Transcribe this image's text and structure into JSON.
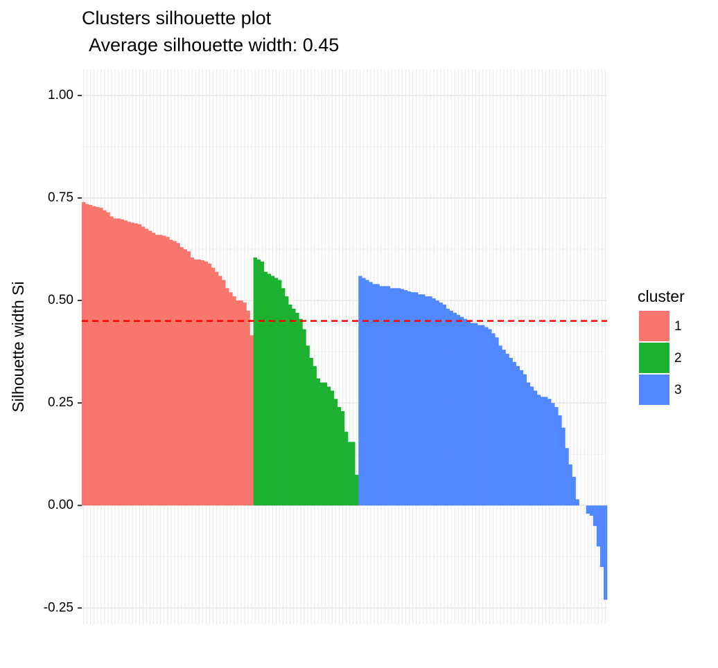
{
  "chart_data": {
    "type": "bar",
    "title": "Clusters silhouette plot",
    "subtitle": "Average silhouette width: 0.45",
    "y_label": "Silhouette width Si",
    "legend_title": "cluster",
    "legend_position": "right",
    "hline": 0.45,
    "hline_color": "#ff0000",
    "grid": true,
    "ylim": [
      -0.29,
      1.064
    ],
    "yticks": [
      {
        "value": -0.25,
        "label": "-0.25"
      },
      {
        "value": 0,
        "label": "0.00"
      },
      {
        "value": 0.25,
        "label": "0.25"
      },
      {
        "value": 0.5,
        "label": "0.50"
      },
      {
        "value": 0.75,
        "label": "0.75"
      },
      {
        "value": 1,
        "label": "1.00"
      }
    ],
    "series": [
      {
        "name": "1",
        "color": "#f8766d",
        "values": [
          0.74,
          0.735,
          0.733,
          0.73,
          0.728,
          0.726,
          0.72,
          0.715,
          0.705,
          0.7,
          0.7,
          0.698,
          0.695,
          0.692,
          0.69,
          0.688,
          0.686,
          0.68,
          0.675,
          0.67,
          0.665,
          0.66,
          0.66,
          0.658,
          0.655,
          0.648,
          0.645,
          0.64,
          0.63,
          0.625,
          0.62,
          0.605,
          0.6,
          0.6,
          0.598,
          0.595,
          0.59,
          0.58,
          0.57,
          0.56,
          0.55,
          0.53,
          0.52,
          0.51,
          0.5,
          0.5,
          0.495,
          0.475,
          0.415
        ]
      },
      {
        "name": "2",
        "color": "#1cb131",
        "values": [
          0.605,
          0.6,
          0.595,
          0.57,
          0.565,
          0.56,
          0.555,
          0.55,
          0.53,
          0.51,
          0.49,
          0.48,
          0.47,
          0.455,
          0.43,
          0.39,
          0.36,
          0.34,
          0.31,
          0.3,
          0.3,
          0.29,
          0.28,
          0.26,
          0.24,
          0.23,
          0.18,
          0.155,
          0.155,
          0.075
        ]
      },
      {
        "name": "3",
        "color": "#5288ff",
        "values": [
          0.56,
          0.555,
          0.55,
          0.545,
          0.54,
          0.54,
          0.535,
          0.535,
          0.535,
          0.53,
          0.53,
          0.53,
          0.528,
          0.525,
          0.522,
          0.52,
          0.52,
          0.515,
          0.515,
          0.51,
          0.51,
          0.505,
          0.5,
          0.495,
          0.49,
          0.48,
          0.475,
          0.47,
          0.465,
          0.46,
          0.455,
          0.45,
          0.445,
          0.445,
          0.44,
          0.44,
          0.435,
          0.43,
          0.42,
          0.41,
          0.39,
          0.38,
          0.37,
          0.36,
          0.35,
          0.34,
          0.33,
          0.32,
          0.3,
          0.29,
          0.28,
          0.27,
          0.265,
          0.265,
          0.26,
          0.25,
          0.24,
          0.22,
          0.19,
          0.14,
          0.1,
          0.07,
          0.015,
          0,
          0,
          -0.02,
          -0.025,
          -0.05,
          -0.1,
          -0.15,
          -0.23
        ]
      }
    ]
  }
}
